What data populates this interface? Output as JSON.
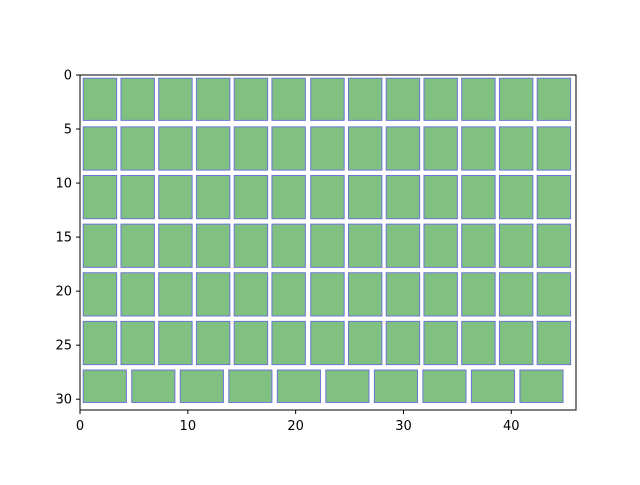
{
  "chart_data": {
    "type": "table",
    "title": "",
    "xlabel": "",
    "ylabel": "",
    "xlim": [
      0,
      46
    ],
    "ylim": [
      31,
      0
    ],
    "y_axis_inverted": true,
    "grid": false,
    "legend": "none",
    "x_ticks": [
      0,
      10,
      20,
      30,
      40
    ],
    "y_ticks": [
      0,
      5,
      10,
      15,
      20,
      25,
      30
    ],
    "colors": {
      "fill": "#80c080",
      "edge": "#6b74d6",
      "axis": "#000000"
    },
    "rows": [
      {
        "y": [
          0.3,
          4.2
        ],
        "cells": [
          [
            0.3,
            3.4
          ],
          [
            3.8,
            6.9
          ],
          [
            7.3,
            10.4
          ],
          [
            10.8,
            13.9
          ],
          [
            14.3,
            17.4
          ],
          [
            17.8,
            20.9
          ],
          [
            21.4,
            24.5
          ],
          [
            24.9,
            28.0
          ],
          [
            28.4,
            31.5
          ],
          [
            31.9,
            35.0
          ],
          [
            35.4,
            38.5
          ],
          [
            38.9,
            42.0
          ],
          [
            42.4,
            45.5
          ]
        ]
      },
      {
        "y": [
          4.8,
          8.8
        ],
        "cells": [
          [
            0.3,
            3.4
          ],
          [
            3.8,
            6.9
          ],
          [
            7.3,
            10.4
          ],
          [
            10.8,
            13.9
          ],
          [
            14.3,
            17.4
          ],
          [
            17.8,
            20.9
          ],
          [
            21.4,
            24.5
          ],
          [
            24.9,
            28.0
          ],
          [
            28.4,
            31.5
          ],
          [
            31.9,
            35.0
          ],
          [
            35.4,
            38.5
          ],
          [
            38.9,
            42.0
          ],
          [
            42.4,
            45.5
          ]
        ]
      },
      {
        "y": [
          9.3,
          13.3
        ],
        "cells": [
          [
            0.3,
            3.4
          ],
          [
            3.8,
            6.9
          ],
          [
            7.3,
            10.4
          ],
          [
            10.8,
            13.9
          ],
          [
            14.3,
            17.4
          ],
          [
            17.8,
            20.9
          ],
          [
            21.4,
            24.5
          ],
          [
            24.9,
            28.0
          ],
          [
            28.4,
            31.5
          ],
          [
            31.9,
            35.0
          ],
          [
            35.4,
            38.5
          ],
          [
            38.9,
            42.0
          ],
          [
            42.4,
            45.5
          ]
        ]
      },
      {
        "y": [
          13.8,
          17.8
        ],
        "cells": [
          [
            0.3,
            3.4
          ],
          [
            3.8,
            6.9
          ],
          [
            7.3,
            10.4
          ],
          [
            10.8,
            13.9
          ],
          [
            14.3,
            17.4
          ],
          [
            17.8,
            20.9
          ],
          [
            21.4,
            24.5
          ],
          [
            24.9,
            28.0
          ],
          [
            28.4,
            31.5
          ],
          [
            31.9,
            35.0
          ],
          [
            35.4,
            38.5
          ],
          [
            38.9,
            42.0
          ],
          [
            42.4,
            45.5
          ]
        ]
      },
      {
        "y": [
          18.3,
          22.3
        ],
        "cells": [
          [
            0.3,
            3.4
          ],
          [
            3.8,
            6.9
          ],
          [
            7.3,
            10.4
          ],
          [
            10.8,
            13.9
          ],
          [
            14.3,
            17.4
          ],
          [
            17.8,
            20.9
          ],
          [
            21.4,
            24.5
          ],
          [
            24.9,
            28.0
          ],
          [
            28.4,
            31.5
          ],
          [
            31.9,
            35.0
          ],
          [
            35.4,
            38.5
          ],
          [
            38.9,
            42.0
          ],
          [
            42.4,
            45.5
          ]
        ]
      },
      {
        "y": [
          22.8,
          26.8
        ],
        "cells": [
          [
            0.3,
            3.4
          ],
          [
            3.8,
            6.9
          ],
          [
            7.3,
            10.4
          ],
          [
            10.8,
            13.9
          ],
          [
            14.3,
            17.4
          ],
          [
            17.8,
            20.9
          ],
          [
            21.4,
            24.5
          ],
          [
            24.9,
            28.0
          ],
          [
            28.4,
            31.5
          ],
          [
            31.9,
            35.0
          ],
          [
            35.4,
            38.5
          ],
          [
            38.9,
            42.0
          ],
          [
            42.4,
            45.5
          ]
        ]
      },
      {
        "y": [
          27.3,
          30.3
        ],
        "cells": [
          [
            0.3,
            4.3
          ],
          [
            4.8,
            8.8
          ],
          [
            9.3,
            13.3
          ],
          [
            13.8,
            17.8
          ],
          [
            18.3,
            22.3
          ],
          [
            22.8,
            26.8
          ],
          [
            27.3,
            31.3
          ],
          [
            31.8,
            35.8
          ],
          [
            36.3,
            40.3
          ],
          [
            40.8,
            44.8
          ]
        ]
      }
    ]
  }
}
